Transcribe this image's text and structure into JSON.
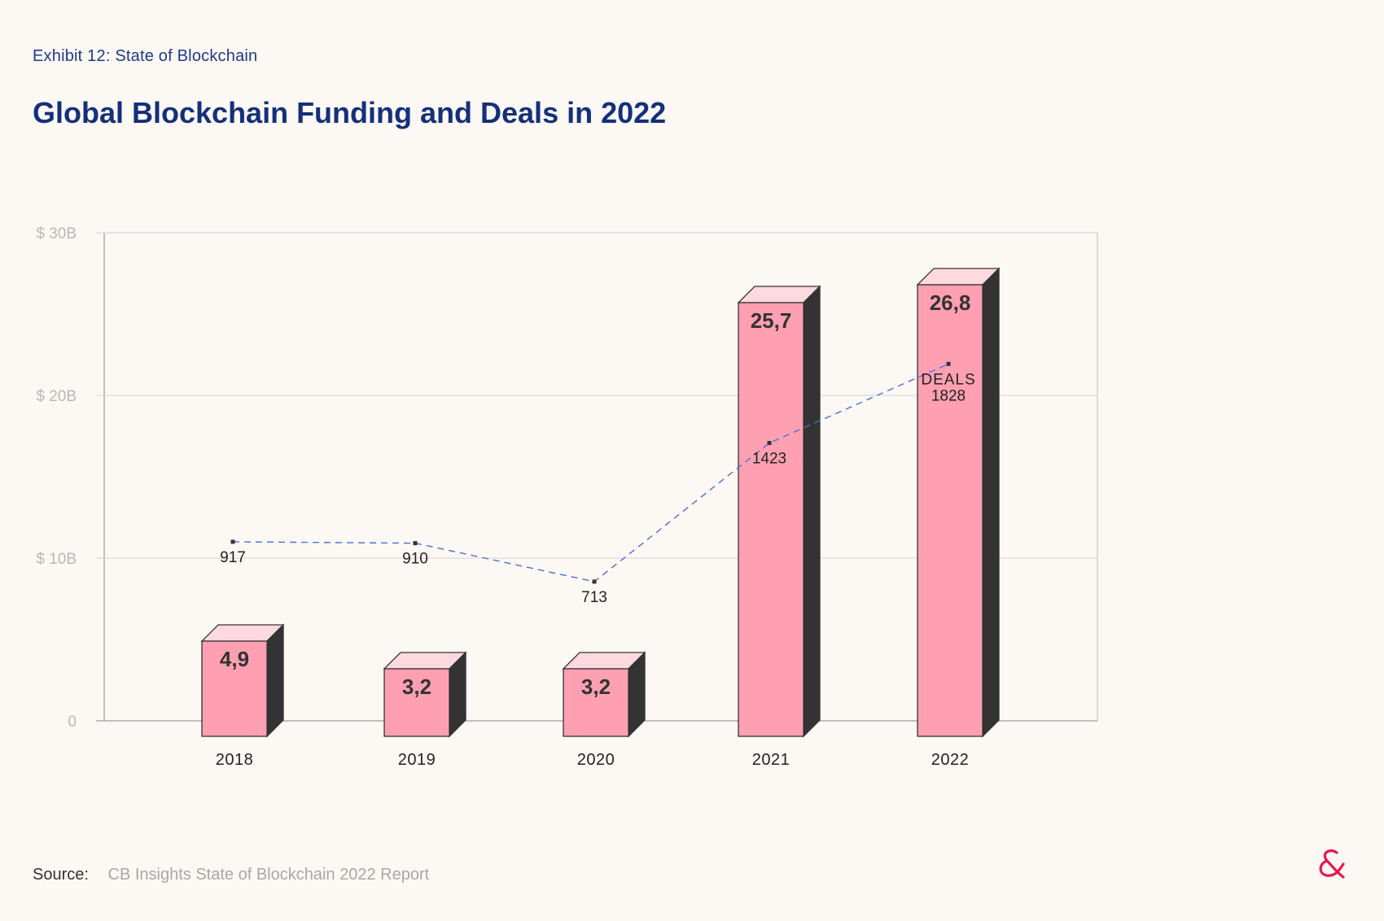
{
  "header": {
    "exhibit": "Exhibit 12: State of Blockchain",
    "title": "Global Blockchain Funding and Deals in 2022"
  },
  "footer": {
    "source_label": "Source:",
    "source_text": "CB Insights State of Blockchain 2022 Report"
  },
  "colors": {
    "bar_front": "#ffa0b2",
    "bar_top": "#ffd9e0",
    "bar_side": "#333333",
    "line": "#4a6fd6",
    "title": "#15307a",
    "logo": "#e8164e"
  },
  "icons": {
    "logo": "ampersand-logo-icon"
  },
  "chart_data": {
    "type": "bar",
    "categories": [
      "2018",
      "2019",
      "2020",
      "2021",
      "2022"
    ],
    "series": [
      {
        "values": [
          4.9,
          3.2,
          3.2,
          25.7,
          26.8
        ],
        "labels": [
          "4,9",
          "3,2",
          "3,2",
          "25,7",
          "26,8"
        ]
      },
      {
        "values": [
          917,
          910,
          713,
          1423,
          1828
        ],
        "labels": [
          "917",
          "910",
          "713",
          "1423",
          "1828"
        ],
        "type": "line"
      }
    ],
    "deals_caption": "DEALS",
    "yticks": [
      "0",
      "$ 10B",
      "$ 20B",
      "$ 30B"
    ],
    "ylim": [
      0,
      30
    ],
    "grid": true
  }
}
